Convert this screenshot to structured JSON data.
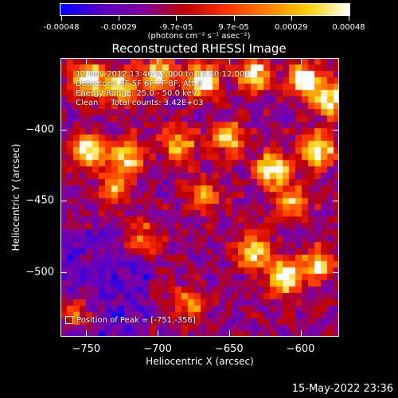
{
  "colorbar": {
    "ticks": [
      "-0.00048",
      "-0.00029",
      "-9.7e-05",
      "9.7e-05",
      "0.00029",
      "0.00048"
    ],
    "unit": "(photons cm⁻² s⁻¹ asec⁻²)",
    "colors": [
      "#0000ff",
      "#5a00c8",
      "#8000a0",
      "#c00000",
      "#ff3000",
      "#ff8000",
      "#ffd000",
      "#ffffff"
    ]
  },
  "title": "Reconstructed RHESSI Image",
  "annotations": [
    "12-Nov-2012 13:46:52.000 to 13:50:12.000",
    "Detectors: 3F 5F 6F 7F 8F, Att 0",
    "Energy Range: 25.0 - 50.0 keV",
    "Clean     Total counts: 3.42E+03"
  ],
  "peak_text": "Position of Peak = [-751,-356]",
  "footer_date": "15-May-2022 23:36",
  "chart_data": {
    "type": "heatmap",
    "title": "Reconstructed RHESSI Image",
    "xlabel": "Heliocentric X (arcsec)",
    "ylabel": "Heliocentric Y (arcsec)",
    "xlim": [
      -768,
      -573
    ],
    "ylim": [
      -545,
      -350
    ],
    "xticks": [
      -750,
      -700,
      -650,
      -600
    ],
    "yticks": [
      -400,
      -450,
      -500
    ],
    "colorbar_range": [
      -0.00048,
      0.00048
    ],
    "colormap": "RHESSI blue-purple-red-yellow-white",
    "peak_position": [
      -751,
      -356
    ]
  }
}
